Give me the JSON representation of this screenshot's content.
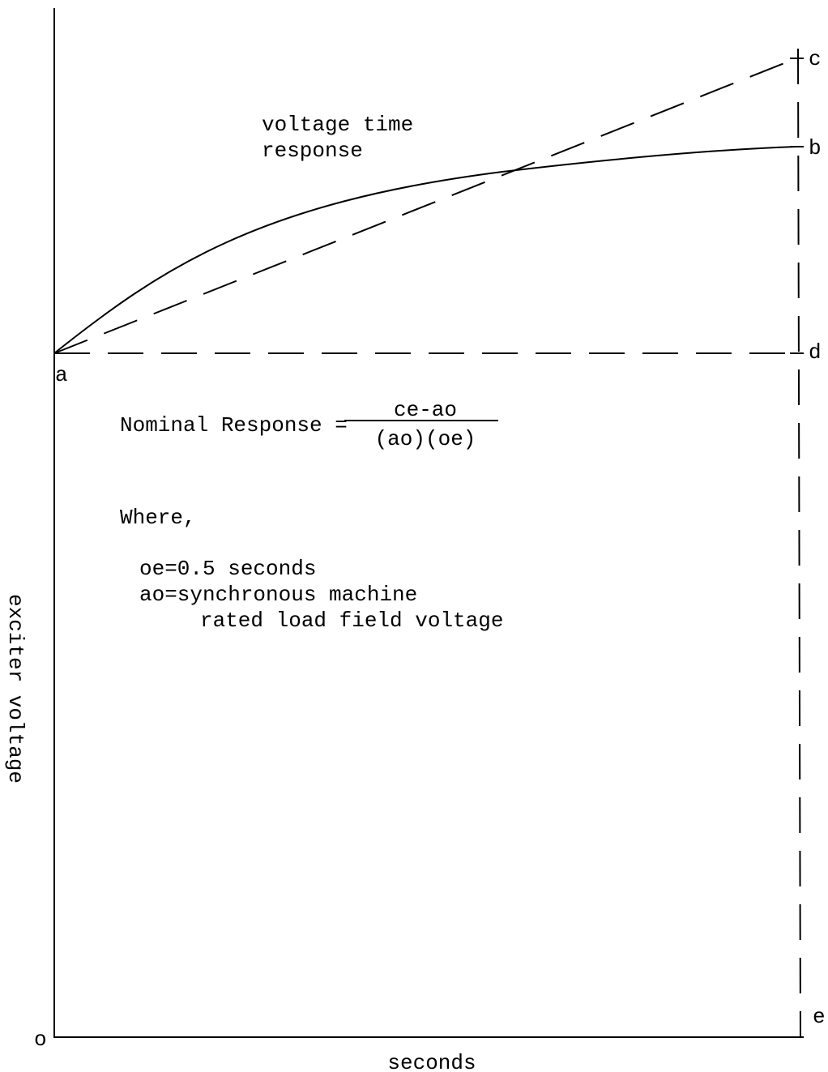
{
  "labels": {
    "a": "a",
    "b": "b",
    "c": "c",
    "d": "d",
    "e": "e",
    "o": "o"
  },
  "curve_label": [
    "voltage time",
    "response"
  ],
  "formula": {
    "lhs": "Nominal Response =",
    "numerator": "ce-ao",
    "denominator": "(ao)(oe)"
  },
  "where": {
    "heading": "Where,",
    "lines": [
      "oe=0.5 seconds",
      "ao=synchronous machine",
      "rated load field voltage"
    ]
  },
  "axes": {
    "y_label": "exciter voltage",
    "x_label": "seconds"
  }
}
